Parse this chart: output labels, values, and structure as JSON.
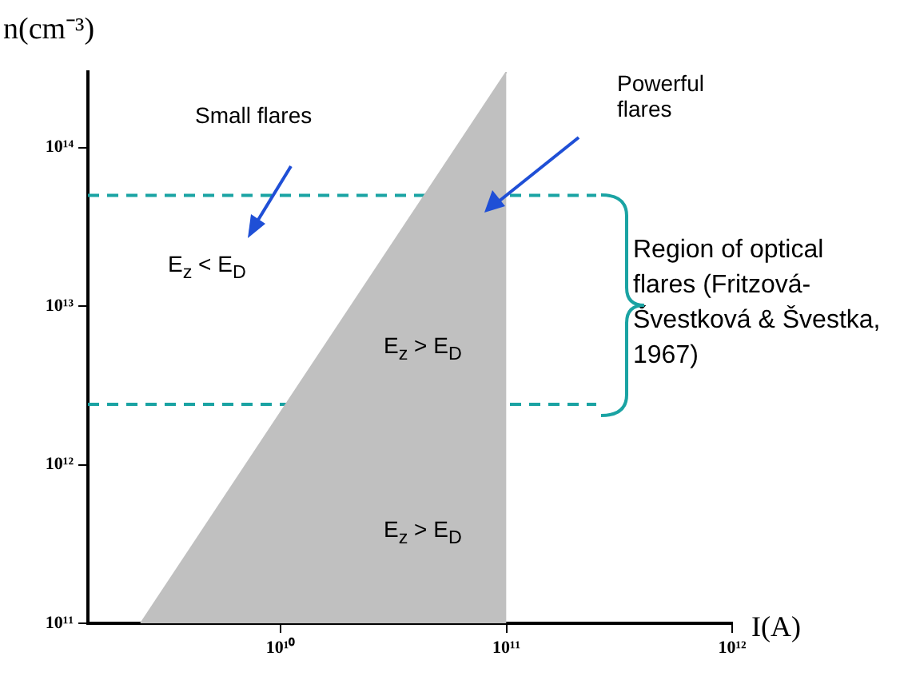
{
  "chart_data": {
    "type": "area",
    "xlabel": "I(A)",
    "ylabel": "n(cm⁻³)",
    "log": "xy",
    "grid": false,
    "legend": false,
    "marker": "none",
    "xlim": [
      1400000000.0,
      1000000000000.0
    ],
    "ylim": [
      100000000000.0,
      300000000000000.0
    ],
    "xticks": [
      {
        "value": 10000000000.0,
        "label": "10¹⁰"
      },
      {
        "value": 100000000000.0,
        "label": "10¹¹"
      },
      {
        "value": 1000000000000.0,
        "label": "10¹²"
      }
    ],
    "yticks": [
      {
        "value": 100000000000.0,
        "label": "10¹¹"
      },
      {
        "value": 1000000000000.0,
        "label": "10¹²"
      },
      {
        "value": 10000000000000.0,
        "label": "10¹³"
      },
      {
        "value": 100000000000000.0,
        "label": "10¹⁴"
      }
    ],
    "series": [
      {
        "color": "#c0c0c0",
        "x": [
          2400000000.0,
          100000000000.0
        ],
        "values": [
          100000000000.0,
          300000000000000.0
        ]
      },
      {
        "type": "line",
        "color": "#1aa3a3",
        "line_style": "dashed",
        "x": [
          1400000000.0,
          250000000000.0
        ],
        "values": [
          50000000000000.0,
          50000000000000.0
        ]
      },
      {
        "type": "line",
        "color": "#1aa3a3",
        "line_style": "dashed",
        "x": [
          1400000000.0,
          250000000000.0
        ],
        "values": [
          2400000000000.0,
          2400000000000.0
        ]
      }
    ],
    "annotations": [
      "Small flares",
      "Powerful flares",
      "E$_{z}$ < E$_{D}$",
      "E$_{z}$ > E$_{D}$",
      "E$_{z}$ > E$_{D}$",
      "Region of optical flares (Fritzová-Švestková & Švestka, 1967)"
    ]
  }
}
